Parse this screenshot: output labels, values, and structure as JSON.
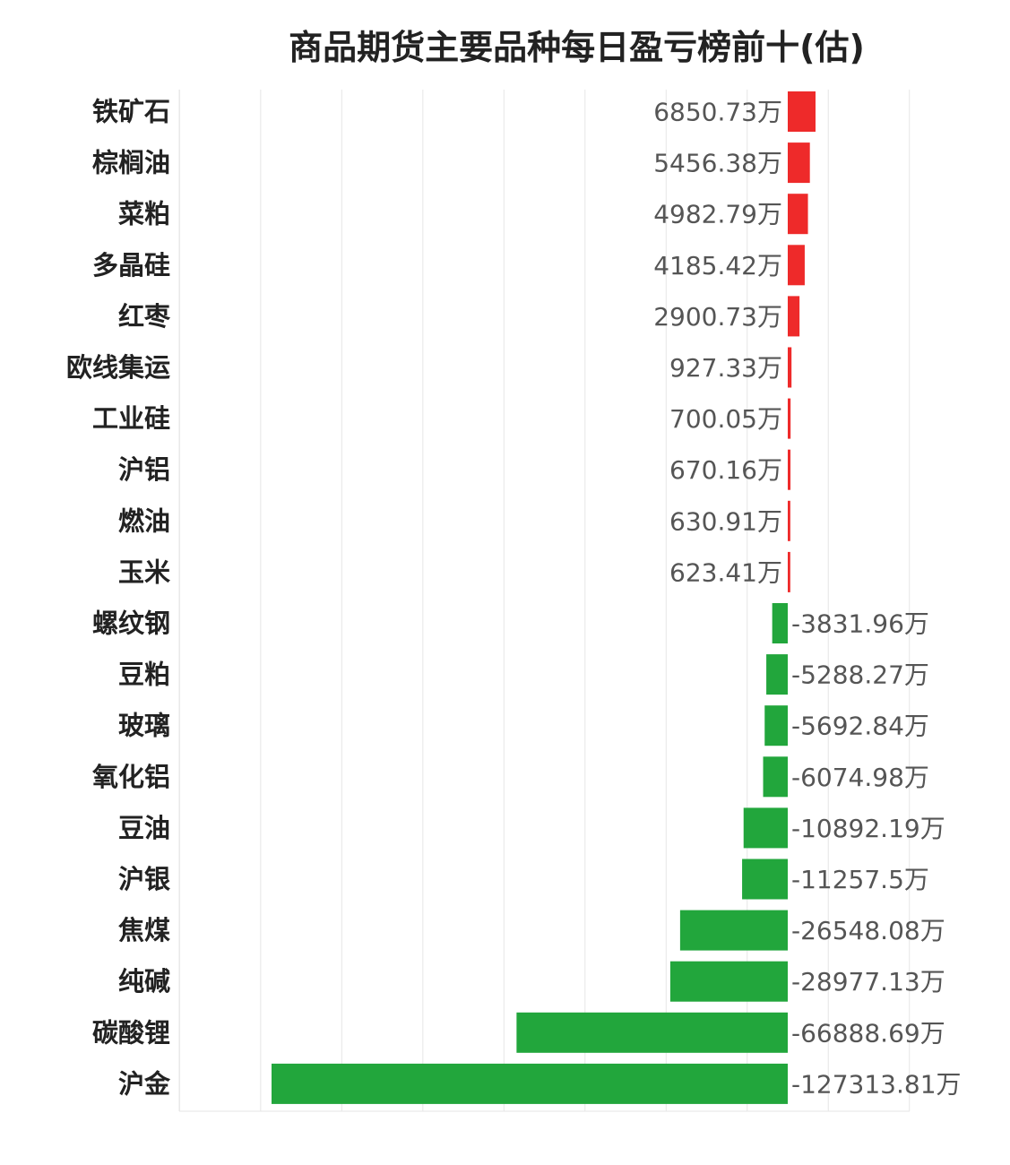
{
  "chart_data": {
    "type": "bar",
    "orientation": "horizontal",
    "title": "商品期货主要品种每日盈亏榜前十(估)",
    "unit_suffix": "万",
    "categories": [
      "铁矿石",
      "棕榈油",
      "菜粕",
      "多晶硅",
      "红枣",
      "欧线集运",
      "工业硅",
      "沪铝",
      "燃油",
      "玉米",
      "螺纹钢",
      "豆粕",
      "玻璃",
      "氧化铝",
      "豆油",
      "沪银",
      "焦煤",
      "纯碱",
      "碳酸锂",
      "沪金"
    ],
    "values": [
      6850.73,
      5456.38,
      4982.79,
      4185.42,
      2900.73,
      927.33,
      700.05,
      670.16,
      630.91,
      623.41,
      -3831.96,
      -5288.27,
      -5692.84,
      -6074.98,
      -10892.19,
      -11257.5,
      -26548.08,
      -28977.13,
      -66888.69,
      -127313.81
    ],
    "value_labels": [
      "6850.73万",
      "5456.38万",
      "4982.79万",
      "4185.42万",
      "2900.73万",
      "927.33万",
      "700.05万",
      "670.16万",
      "630.91万",
      "623.41万",
      "-3831.96万",
      "-5288.27万",
      "-5692.84万",
      "-6074.98万",
      "-10892.19万",
      "-11257.5万",
      "-26548.08万",
      "-28977.13万",
      "-66888.69万",
      "-127313.81万"
    ],
    "xlim": [
      -150000,
      30000
    ],
    "grid": true,
    "colors": {
      "positive": "#ee2a2a",
      "negative": "#22a63c",
      "grid": "#e6e6e6"
    }
  }
}
